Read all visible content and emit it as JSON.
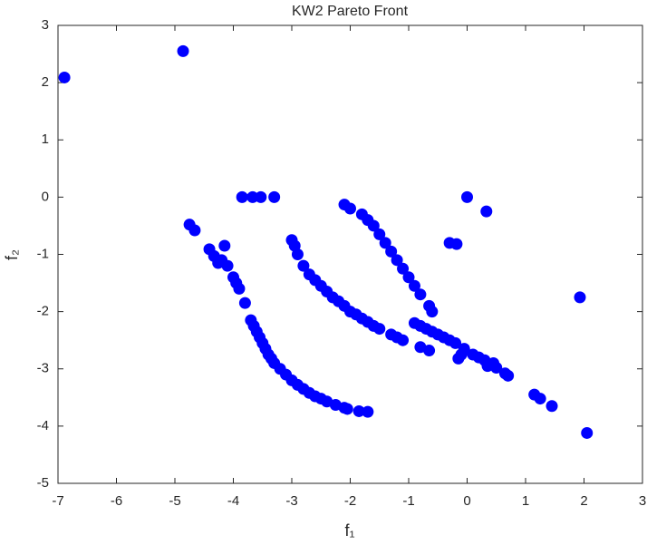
{
  "chart_data": {
    "type": "scatter",
    "title": "KW2 Pareto Front",
    "xlabel": "f₁",
    "ylabel": "f₂",
    "color": "#0000ff",
    "xlim": [
      -7,
      3
    ],
    "ylim": [
      -5,
      3
    ],
    "xticks": [
      -7,
      -6,
      -5,
      -4,
      -3,
      -2,
      -1,
      0,
      1,
      2,
      3
    ],
    "yticks": [
      -5,
      -4,
      -3,
      -2,
      -1,
      0,
      1,
      2,
      3
    ],
    "grid": false,
    "x": [
      -6.89,
      -4.86,
      -3.85,
      -3.67,
      -3.53,
      -3.3,
      0,
      0.33,
      -0.3,
      -0.18,
      1.93,
      2.05,
      -4.75,
      -4.66,
      -4.41,
      -4.33,
      -4.26,
      -4.15,
      -4.2,
      -4.1,
      -4.0,
      -3.95,
      -3.9,
      -3.8,
      -3.7,
      -3.65,
      -3.6,
      -3.55,
      -3.5,
      -3.45,
      -3.4,
      -3.35,
      -3.3,
      -3.2,
      -3.1,
      -3.0,
      -2.9,
      -2.8,
      -2.7,
      -2.6,
      -2.5,
      -2.4,
      -2.25,
      -2.1,
      -2.05,
      -1.85,
      -1.7,
      -3.0,
      -2.95,
      -2.9,
      -2.8,
      -2.7,
      -2.6,
      -2.5,
      -2.4,
      -2.3,
      -2.2,
      -2.1,
      -2.0,
      -1.9,
      -1.8,
      -1.7,
      -1.6,
      -1.5,
      -1.3,
      -1.2,
      -1.1,
      -0.9,
      -0.8,
      -0.7,
      -0.6,
      -0.5,
      -0.4,
      -0.3,
      -0.2,
      -0.8,
      -0.65,
      -0.1,
      -0.05,
      0.1,
      0.2,
      0.3,
      0.35,
      0.45,
      0.5,
      0.65,
      0.7,
      1.15,
      1.25,
      1.45,
      -0.15,
      -2.1,
      -2.0,
      -1.8,
      -1.7,
      -1.6,
      -1.5,
      -1.4,
      -1.3,
      -1.2,
      -1.1,
      -1.0,
      -0.9,
      -0.8,
      -0.65,
      -0.6
    ],
    "y": [
      2.09,
      2.55,
      0,
      0,
      0,
      0,
      0,
      -0.25,
      -0.8,
      -0.82,
      -1.75,
      -4.12,
      -0.48,
      -0.58,
      -0.91,
      -1.03,
      -1.15,
      -0.85,
      -1.1,
      -1.2,
      -1.4,
      -1.5,
      -1.6,
      -1.85,
      -2.15,
      -2.25,
      -2.35,
      -2.45,
      -2.55,
      -2.65,
      -2.75,
      -2.82,
      -2.9,
      -3.0,
      -3.1,
      -3.2,
      -3.28,
      -3.35,
      -3.42,
      -3.48,
      -3.52,
      -3.57,
      -3.63,
      -3.68,
      -3.7,
      -3.74,
      -3.75,
      -0.75,
      -0.85,
      -1.0,
      -1.2,
      -1.35,
      -1.45,
      -1.55,
      -1.65,
      -1.75,
      -1.82,
      -1.9,
      -2.0,
      -2.05,
      -2.12,
      -2.18,
      -2.25,
      -2.3,
      -2.4,
      -2.45,
      -2.5,
      -2.2,
      -2.25,
      -2.3,
      -2.35,
      -2.4,
      -2.45,
      -2.5,
      -2.55,
      -2.62,
      -2.68,
      -2.75,
      -2.65,
      -2.75,
      -2.8,
      -2.85,
      -2.95,
      -2.9,
      -2.98,
      -3.08,
      -3.12,
      -3.45,
      -3.52,
      -3.65,
      -2.82,
      -0.13,
      -0.2,
      -0.3,
      -0.4,
      -0.5,
      -0.65,
      -0.8,
      -0.95,
      -1.1,
      -1.25,
      -1.4,
      -1.55,
      -1.7,
      -1.9,
      -2.0
    ]
  }
}
